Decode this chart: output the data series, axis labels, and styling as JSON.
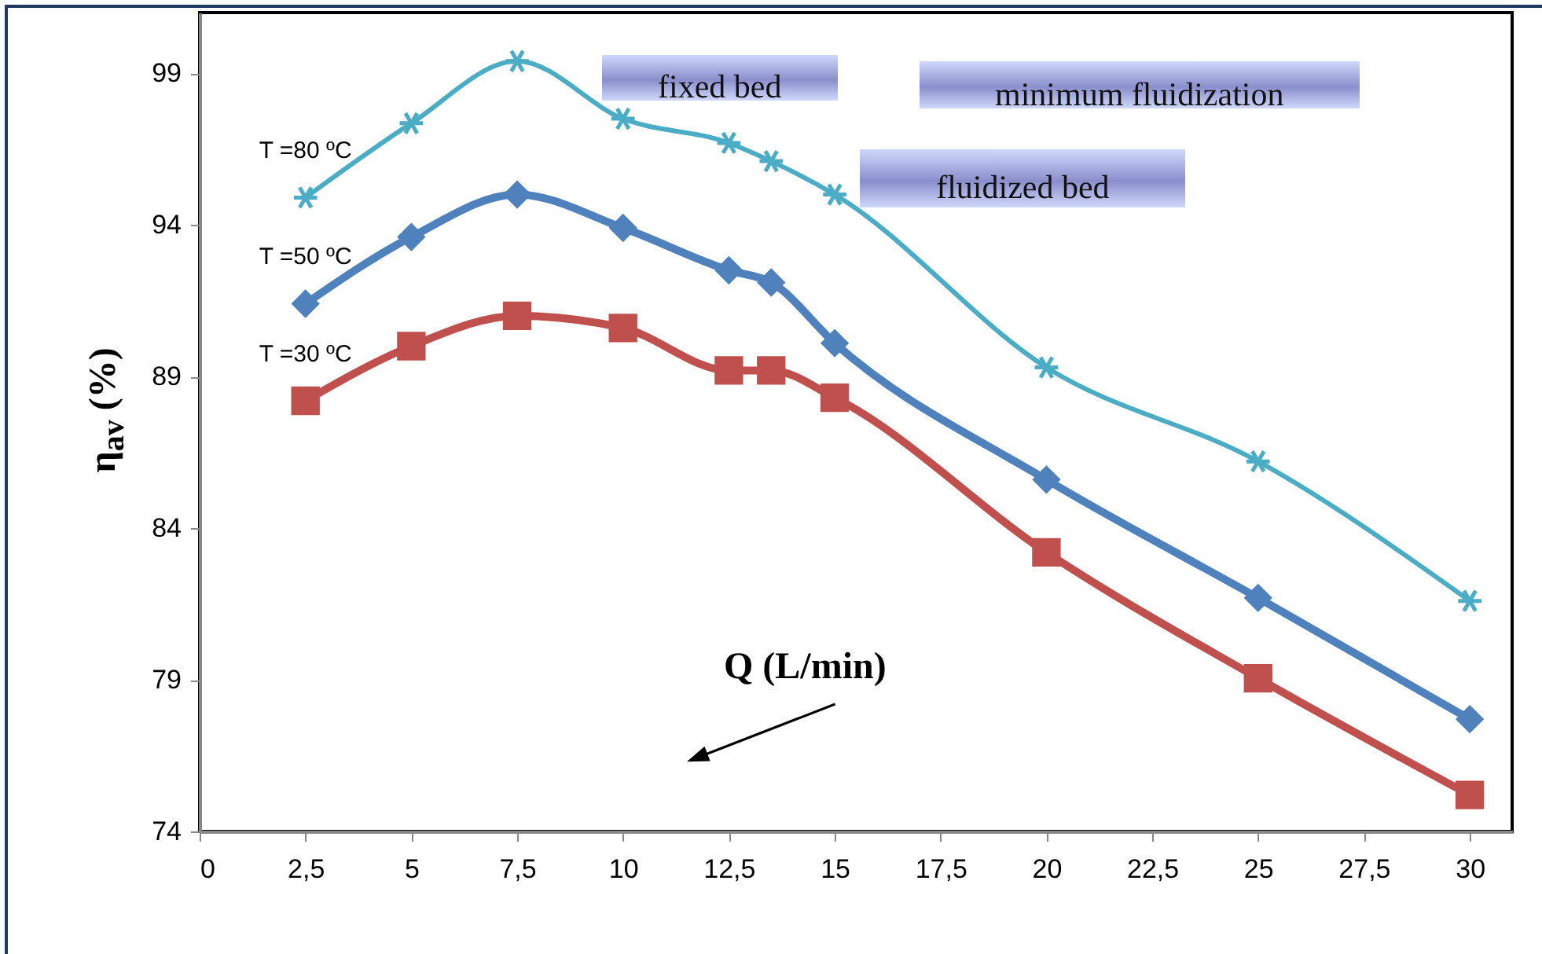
{
  "chart_data": {
    "type": "line",
    "xlabel": "Q (L/min)",
    "ylabel": "η$_{av}$ (%)",
    "x": [
      2.5,
      5,
      7.5,
      10,
      12.5,
      13.5,
      15,
      20,
      25,
      30
    ],
    "series": [
      {
        "name": "T =80 ºC",
        "color": "#4bacc6",
        "marker": "cross",
        "values": [
          94.9,
          97.35,
          99.4,
          97.5,
          96.7,
          96.1,
          95.0,
          89.3,
          86.2,
          81.6
        ]
      },
      {
        "name": "T =50 ºC",
        "color": "#4f81bd",
        "marker": "diamond",
        "values": [
          91.4,
          93.6,
          95.0,
          93.9,
          92.5,
          92.1,
          90.1,
          85.6,
          81.7,
          77.7
        ]
      },
      {
        "name": "T =30 ºC",
        "color": "#c0504d",
        "marker": "square",
        "values": [
          88.2,
          90.0,
          91.0,
          90.6,
          89.2,
          89.2,
          88.3,
          83.2,
          79.05,
          75.2
        ]
      }
    ],
    "xlim": [
      0,
      31
    ],
    "ylim": [
      74,
      101
    ],
    "xticks": [
      0,
      {
        "value": 2.5,
        "label": "2,5"
      },
      5,
      {
        "value": 7.5,
        "label": "7,5"
      },
      10,
      {
        "value": 12.5,
        "label": "12,5"
      },
      15,
      {
        "value": 17.5,
        "label": "17,5"
      },
      20,
      {
        "value": 22.5,
        "label": "22,5"
      },
      25,
      {
        "value": 27.5,
        "label": "27,5"
      },
      30
    ],
    "yticks": [
      74,
      79,
      84,
      89,
      94,
      99
    ],
    "grid": false,
    "line_style": "solid",
    "annotations": [
      "fixed bed",
      "minimum fluidization",
      "fluidized bed"
    ]
  }
}
